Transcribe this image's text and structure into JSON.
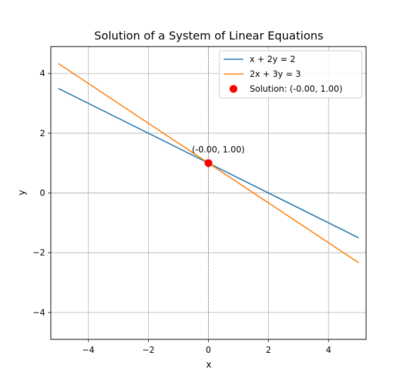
{
  "chart_data": {
    "type": "line",
    "title": "Solution of a System of Linear Equations",
    "xlabel": "x",
    "ylabel": "y",
    "xlim": [
      -5.25,
      5.25
    ],
    "ylim": [
      -4.9,
      4.9
    ],
    "xticks": [
      -4,
      -2,
      0,
      2,
      4
    ],
    "yticks": [
      -4,
      -2,
      0,
      2,
      4
    ],
    "xtick_labels": [
      "−4",
      "−2",
      "0",
      "2",
      "4"
    ],
    "ytick_labels": [
      "−4",
      "−2",
      "0",
      "2",
      "4"
    ],
    "grid": true,
    "legend_position": "top-right",
    "series": [
      {
        "name": "x + 2y = 2",
        "color": "#1f77b4",
        "x": [
          -5,
          5
        ],
        "y": [
          3.5,
          -1.5
        ]
      },
      {
        "name": "2x + 3y = 3",
        "color": "#ff7f0e",
        "x": [
          -5,
          5
        ],
        "y": [
          4.333,
          -2.333
        ]
      }
    ],
    "points": [
      {
        "name": "Solution: (-0.00, 1.00)",
        "color": "#ff0000",
        "x": 0,
        "y": 1,
        "annotation": "(-0.00, 1.00)"
      }
    ],
    "reference_lines": {
      "x": 0,
      "y": 0,
      "color": "#808080",
      "style": "dashed"
    }
  }
}
